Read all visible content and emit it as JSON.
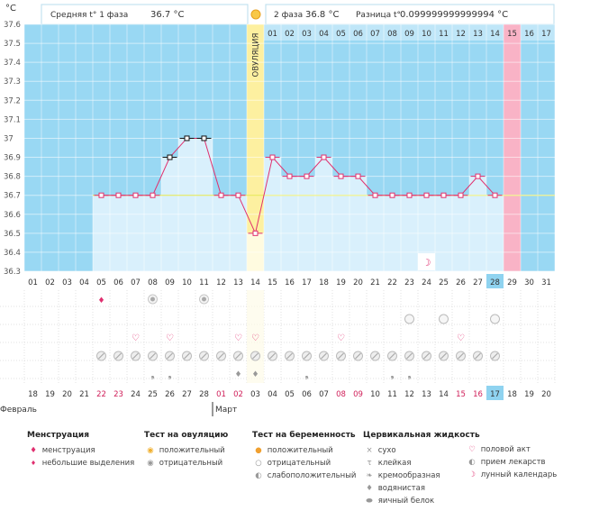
{
  "header": {
    "phase1_label": "Средняя t° 1 фаза",
    "phase1_value": "36.7 °C",
    "phase2_label": "2 фаза",
    "phase2_value": "36.8 °C",
    "diff_label": "Разница t°",
    "diff_value": "0.099999999999994 °C",
    "unit": "°C",
    "ovulation_label": "ОВУЛЯЦИЯ"
  },
  "chart_data": {
    "type": "line",
    "title": "",
    "ylabel": "°C",
    "ylim": [
      36.3,
      37.6
    ],
    "y_ticks": [
      "36.3",
      "36.4",
      "36.5",
      "36.6",
      "36.7",
      "36.8",
      "36.9",
      "37",
      "37.1",
      "37.2",
      "37.3",
      "37.4",
      "37.5",
      "37.6"
    ],
    "coverline": 36.7,
    "cycle_days": [
      "01",
      "02",
      "03",
      "04",
      "05",
      "06",
      "07",
      "08",
      "09",
      "10",
      "11",
      "12",
      "13",
      "14",
      "15",
      "16",
      "17",
      "18",
      "19",
      "20",
      "21",
      "22",
      "23",
      "24",
      "25",
      "26",
      "27",
      "28",
      "29",
      "30",
      "31"
    ],
    "phase2_days": [
      "01",
      "02",
      "03",
      "04",
      "05",
      "06",
      "07",
      "08",
      "09",
      "10",
      "11",
      "12",
      "13",
      "14",
      "15",
      "16",
      "17"
    ],
    "dates": [
      "18",
      "19",
      "20",
      "21",
      "22",
      "23",
      "24",
      "25",
      "26",
      "27",
      "28",
      "01",
      "02",
      "03",
      "04",
      "05",
      "06",
      "07",
      "08",
      "09",
      "10",
      "11",
      "12",
      "13",
      "14",
      "15",
      "16",
      "17",
      "18",
      "19",
      "20"
    ],
    "weekend_dates_index": [
      4,
      5,
      11,
      12,
      18,
      19,
      25,
      26
    ],
    "months": [
      "Февраль",
      "Март"
    ],
    "temperatures": [
      null,
      null,
      null,
      null,
      36.7,
      36.7,
      36.7,
      36.7,
      36.9,
      37.0,
      37.0,
      36.7,
      36.7,
      36.5,
      36.9,
      36.8,
      36.8,
      36.9,
      36.8,
      36.8,
      36.7,
      36.7,
      36.7,
      36.7,
      36.7,
      36.7,
      36.8,
      36.7,
      null,
      null,
      null
    ],
    "ovulation_day_index": 13,
    "today_day_index": 27,
    "period_day_index": 28
  },
  "rows": {
    "menstruation": [
      4
    ],
    "ovulation_test": [
      7,
      10
    ],
    "pregnancy_test": [
      22,
      24,
      27
    ],
    "intercourse": [
      6,
      8,
      12,
      13,
      18,
      25
    ],
    "pills": [
      4,
      5,
      6,
      7,
      8,
      9,
      10,
      11,
      12,
      13,
      14,
      15,
      16,
      17,
      18,
      19,
      20,
      21,
      22,
      23,
      24,
      25,
      26,
      27
    ],
    "cervical": [
      {
        "i": 7,
        "k": "creamy"
      },
      {
        "i": 8,
        "k": "creamy"
      },
      {
        "i": 12,
        "k": "watery"
      },
      {
        "i": 13,
        "k": "watery"
      },
      {
        "i": 16,
        "k": "creamy"
      },
      {
        "i": 21,
        "k": "creamy"
      },
      {
        "i": 22,
        "k": "creamy"
      }
    ],
    "moon": [
      23
    ]
  },
  "legend": {
    "menstruation": {
      "title": "Менструация",
      "items": [
        "менструация",
        "небольшие выделения"
      ]
    },
    "ovulation_test": {
      "title": "Тест на овуляцию",
      "items": [
        "положительный",
        "отрицательный"
      ]
    },
    "pregnancy_test": {
      "title": "Тест на беременность",
      "items": [
        "положительный",
        "отрицательный",
        "слабоположительный"
      ]
    },
    "cervical": {
      "title": "Цервикальная жидкость",
      "items": [
        "сухо",
        "клейкая",
        "кремообразная",
        "водянистая",
        "яичный белок"
      ]
    },
    "other": {
      "items": [
        "половой акт",
        "прием лекарств",
        "лунный календарь"
      ]
    }
  },
  "colors": {
    "sky": "#99d8f3",
    "bar": "#d9f0fc",
    "ovulation": "#fdf0a0",
    "period": "#f9b3c6",
    "today": "#8fd3f0",
    "line": "#e0306e",
    "coverline": "#e6e84a",
    "grid": "#ffffff"
  }
}
